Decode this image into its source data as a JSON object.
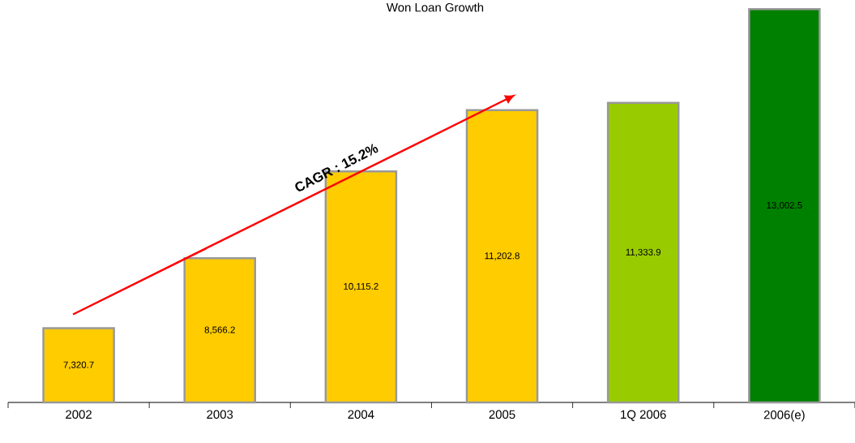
{
  "chart_data": {
    "type": "bar",
    "title": "Won Loan Growth",
    "categories": [
      "2002",
      "2003",
      "2004",
      "2005",
      "1Q 2006",
      "2006(e)"
    ],
    "values": [
      7320.7,
      8566.2,
      10115.2,
      11202.8,
      11333.9,
      13002.5
    ],
    "value_labels": [
      "7,320.7",
      "8,566.2",
      "10,115.2",
      "11,202.8",
      "11,333.9",
      "13,002.5"
    ],
    "colors": [
      "#ffcc00",
      "#ffcc00",
      "#ffcc00",
      "#ffcc00",
      "#99cc00",
      "#008000"
    ],
    "ylim": [
      6000,
      13050
    ],
    "annotations": [
      "CAGR : 15.2%"
    ]
  }
}
